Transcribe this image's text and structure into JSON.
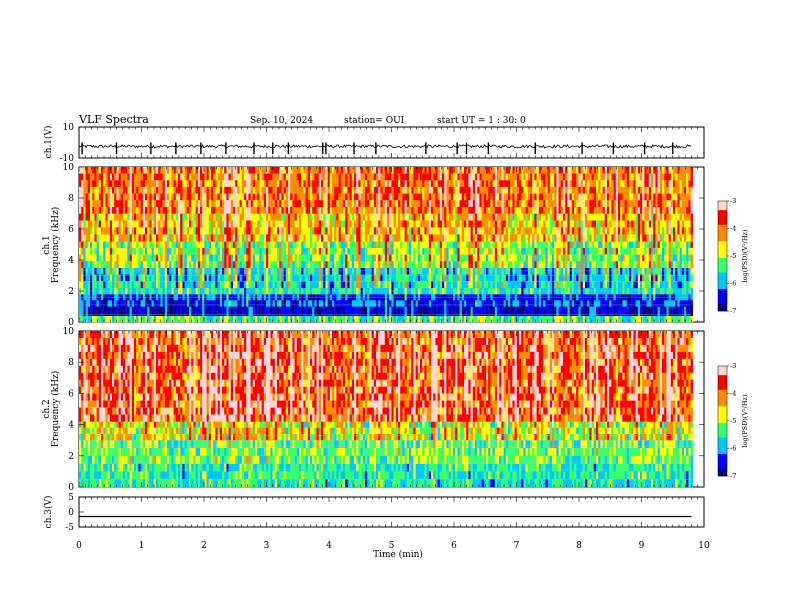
{
  "header": {
    "title": "VLF Spectra",
    "date": "Sep. 10, 2024",
    "station": "station= OUI",
    "start": "start  UT  =   1 : 30: 0"
  },
  "colors": {
    "colormap": [
      "#00007a",
      "#0000ff",
      "#00c8ff",
      "#39ff6a",
      "#ffff00",
      "#ff8c00",
      "#ff0000",
      "#ffd6d6"
    ]
  },
  "chart_data": [
    {
      "type": "line",
      "name": "ch1-waveform",
      "ylabel": "ch.1(V)",
      "ylim": [
        -10,
        10
      ],
      "yticks": [
        "10",
        "-10"
      ],
      "x": [
        0,
        0.5,
        1,
        1.5,
        2,
        2.5,
        3,
        3.5,
        4,
        4.5,
        5,
        5.5,
        6,
        6.5,
        7,
        7.5,
        8,
        8.5,
        9,
        9.5,
        9.8
      ],
      "baseline": -2.5,
      "noise_band": [
        -3.5,
        -1.5
      ],
      "spikes_x": [
        0.05,
        0.6,
        1.15,
        1.55,
        1.95,
        2.35,
        2.8,
        3.1,
        3.35,
        3.9,
        3.95,
        4.4,
        4.75,
        5.55,
        6.05,
        6.2,
        6.55,
        7.3,
        8.05,
        8.55,
        9.05,
        9.5
      ]
    },
    {
      "type": "heatmap",
      "name": "ch1-spectrogram",
      "ylabel": "ch.1\nFrequency (kHz)",
      "ylim": [
        0,
        10
      ],
      "yticks": [
        "0",
        "2",
        "4",
        "6",
        "8",
        "10"
      ],
      "xlim": [
        0,
        9.8
      ],
      "color_range": [
        -7,
        -3
      ],
      "colorbar_label": "log(PSD)(V²/Hz)",
      "colorbar_ticks": [
        "-3",
        "-4",
        "-5",
        "-6",
        "-7"
      ],
      "bands": [
        {
          "f": [
            0,
            0.4
          ],
          "level": -5.3
        },
        {
          "f": [
            0.4,
            1.0
          ],
          "level": -6.6
        },
        {
          "f": [
            1.0,
            1.8
          ],
          "level": -6.3
        },
        {
          "f": [
            1.8,
            2.2
          ],
          "level": -5.5
        },
        {
          "f": [
            2.2,
            3.5
          ],
          "level": -5.6
        },
        {
          "f": [
            3.5,
            5.2
          ],
          "level": -5.0
        },
        {
          "f": [
            5.2,
            7.0
          ],
          "level": -4.3
        },
        {
          "f": [
            7.0,
            10.0
          ],
          "level": -3.9
        }
      ]
    },
    {
      "type": "heatmap",
      "name": "ch2-spectrogram",
      "ylabel": "ch.2\nFrequency (kHz)",
      "ylim": [
        0,
        10
      ],
      "yticks": [
        "0",
        "2",
        "4",
        "6",
        "8",
        "10"
      ],
      "xlim": [
        0,
        9.8
      ],
      "color_range": [
        -7,
        -3
      ],
      "colorbar_label": "log(PSD)(V²/Hz)",
      "colorbar_ticks": [
        "-3",
        "-4",
        "-5",
        "-6",
        "-7"
      ],
      "bands": [
        {
          "f": [
            0,
            1.5
          ],
          "level": -5.5
        },
        {
          "f": [
            1.5,
            3.0
          ],
          "level": -5.2
        },
        {
          "f": [
            3.0,
            4.2
          ],
          "level": -4.6
        },
        {
          "f": [
            4.2,
            10.0
          ],
          "level": -3.6
        }
      ]
    },
    {
      "type": "line",
      "name": "ch3-waveform",
      "ylabel": "ch.3(V)",
      "ylim": [
        -5,
        5
      ],
      "yticks": [
        "5",
        "0",
        "-5"
      ],
      "x": [
        0,
        9.8
      ],
      "y": [
        -1.5,
        -1.5
      ]
    }
  ],
  "xaxis": {
    "label": "Time (min)",
    "ticks": [
      "0",
      "1",
      "2",
      "3",
      "4",
      "5",
      "6",
      "7",
      "8",
      "9",
      "10"
    ],
    "xlim": [
      0,
      10
    ]
  }
}
